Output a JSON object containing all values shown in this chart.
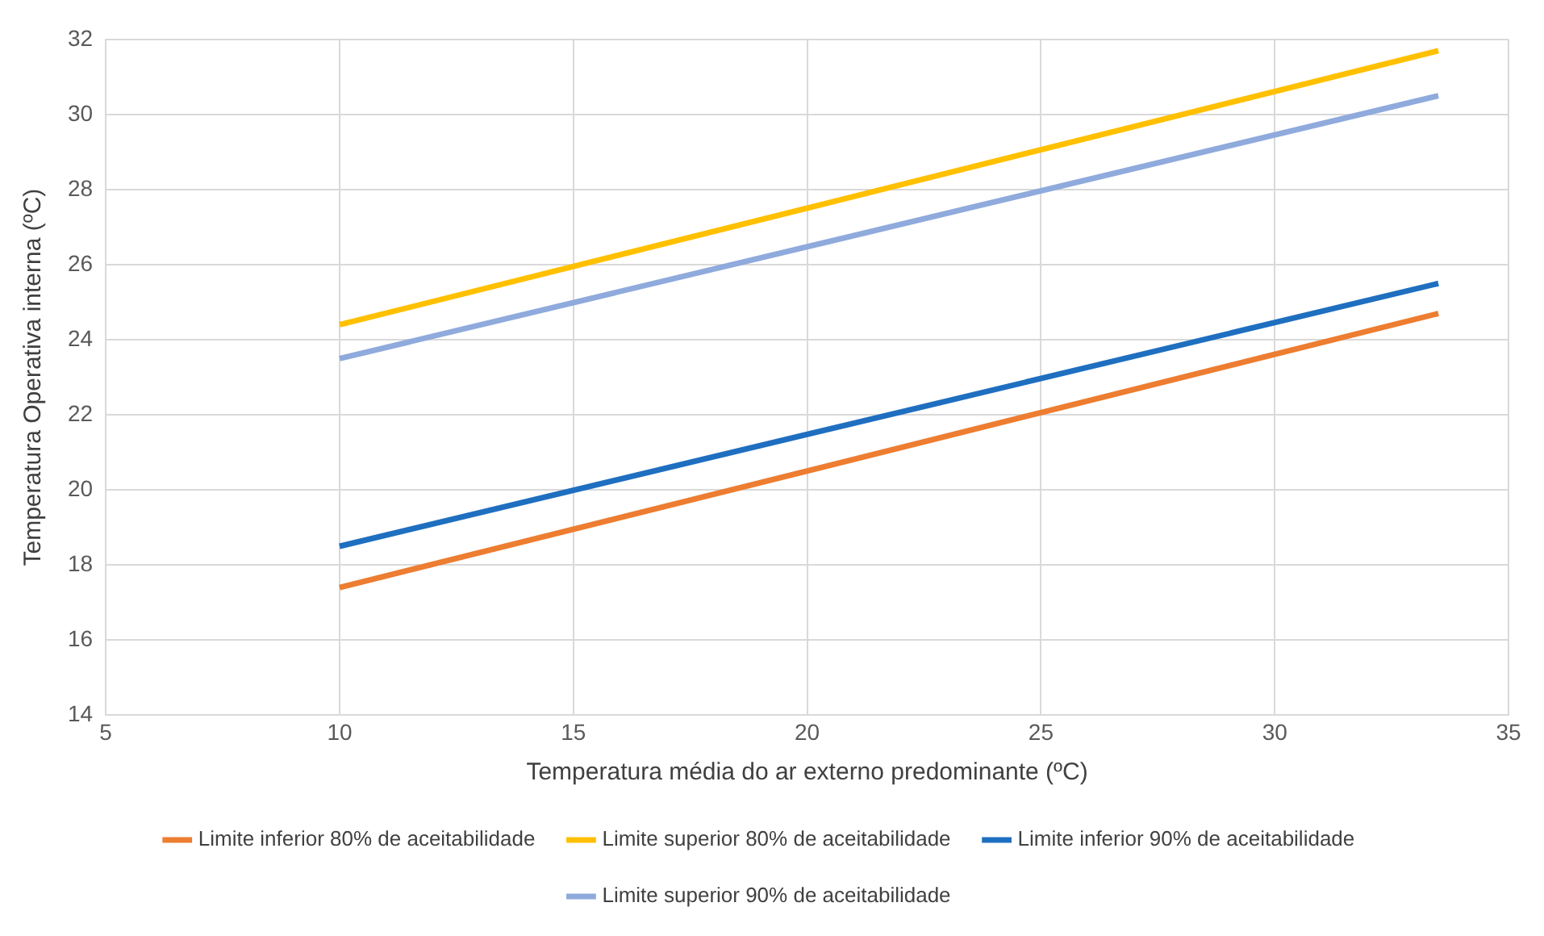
{
  "chart_data": {
    "type": "line",
    "xlabel": "Temperatura média do ar externo predominante (ºC)",
    "ylabel": "Temperatura Operativa interna (ºC)",
    "x": [
      10,
      33.5
    ],
    "series": [
      {
        "name": "Limite inferior 80% de aceitabilidade",
        "color": "#ed7d31",
        "values": [
          17.4,
          24.7
        ]
      },
      {
        "name": "Limite superior 80% de aceitabilidade",
        "color": "#ffc000",
        "values": [
          24.4,
          31.7
        ]
      },
      {
        "name": "Limite inferior 90% de aceitabilidade",
        "color": "#1f6fc0",
        "values": [
          18.5,
          25.5
        ]
      },
      {
        "name": "Limite superior 90% de aceitabilidade",
        "color": "#8faadc",
        "values": [
          23.5,
          30.5
        ]
      }
    ],
    "xlim": [
      5,
      35
    ],
    "xticks": [
      5,
      10,
      15,
      20,
      25,
      30,
      35
    ],
    "ylim": [
      14,
      32
    ],
    "yticks": [
      14,
      16,
      18,
      20,
      22,
      24,
      26,
      28,
      30,
      32
    ],
    "grid": true,
    "legend": "bottom",
    "marker": "none",
    "line_style": "solid"
  }
}
